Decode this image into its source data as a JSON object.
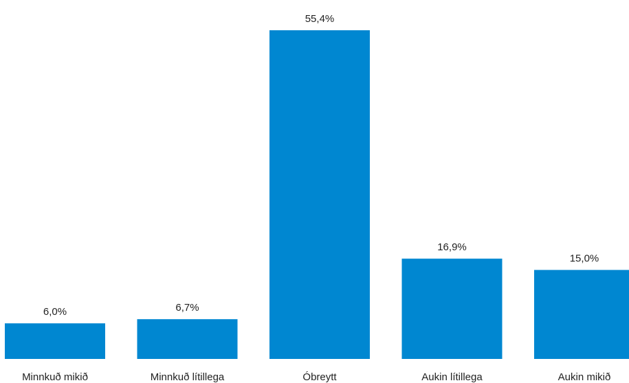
{
  "chart_data": {
    "type": "bar",
    "categories": [
      "Minnkuð mikið",
      "Minnkuð lítillega",
      "Óbreytt",
      "Aukin lítillega",
      "Aukin mikið"
    ],
    "values": [
      6.0,
      6.7,
      55.4,
      16.9,
      15.0
    ],
    "value_labels": [
      "6,0%",
      "6,7%",
      "55,4%",
      "16,9%",
      "15,0%"
    ],
    "title": "",
    "xlabel": "",
    "ylabel": "",
    "ylim": [
      0,
      60
    ],
    "grid": false,
    "legend": "none",
    "bar_color": "#0087D1"
  }
}
